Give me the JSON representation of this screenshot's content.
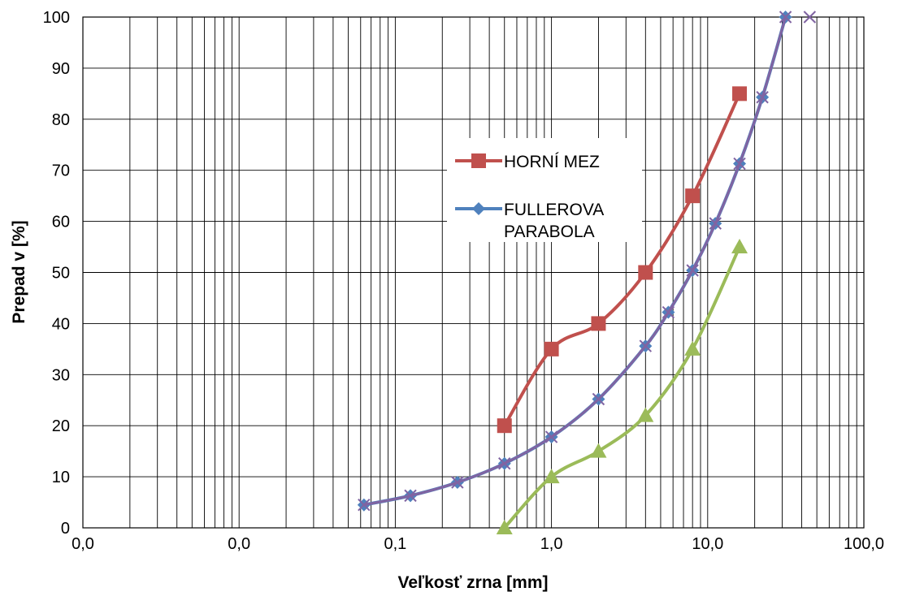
{
  "chart_data": {
    "type": "line",
    "title": "",
    "xlabel": "Veľkosť zrna [mm]",
    "ylabel": "Prepad v [%]",
    "x_scale": "log",
    "xlim": [
      0.001,
      100
    ],
    "ylim": [
      0,
      100
    ],
    "grid": true,
    "x_tick_labels": [
      "0,0",
      "0,0",
      "0,1",
      "1,0",
      "10,0",
      "100,0"
    ],
    "y_tick_labels": [
      "0",
      "10",
      "20",
      "30",
      "40",
      "50",
      "60",
      "70",
      "80",
      "90",
      "100"
    ],
    "legend": {
      "position": "center-right",
      "entries": [
        "HORNÍ MEZ",
        "FULLEROVA PARABOLA"
      ]
    },
    "series": [
      {
        "name": "HORNÍ MEZ",
        "color": "#c0504d",
        "marker": "square",
        "x": [
          0.5,
          1,
          2,
          4,
          8,
          16
        ],
        "y": [
          20,
          35,
          40,
          50,
          65,
          85
        ]
      },
      {
        "name": "FULLEROVA PARABOLA",
        "color": "#4f81bd",
        "marker": "diamond",
        "x": [
          0.063,
          0.125,
          0.25,
          0.5,
          1,
          2,
          4,
          5.6,
          8,
          11.2,
          16,
          22.4,
          31.5
        ],
        "y": [
          4.5,
          6.3,
          8.9,
          12.6,
          17.8,
          25.2,
          35.6,
          42.2,
          50.4,
          59.6,
          71.3,
          84.3,
          100
        ]
      },
      {
        "color": "#8064a2",
        "marker": "x",
        "x": [
          0.063,
          0.125,
          0.25,
          0.5,
          1,
          2,
          4,
          5.6,
          8,
          11.2,
          16,
          22.4,
          31.5,
          45
        ],
        "y": [
          4.5,
          6.3,
          8.9,
          12.6,
          17.8,
          25.2,
          35.6,
          42.2,
          50.4,
          59.6,
          71.3,
          84.3,
          100,
          100
        ]
      },
      {
        "color": "#9bbb59",
        "marker": "triangle",
        "x": [
          0.5,
          1,
          2,
          4,
          8,
          16
        ],
        "y": [
          0,
          10,
          15,
          22,
          35,
          55
        ]
      }
    ]
  }
}
